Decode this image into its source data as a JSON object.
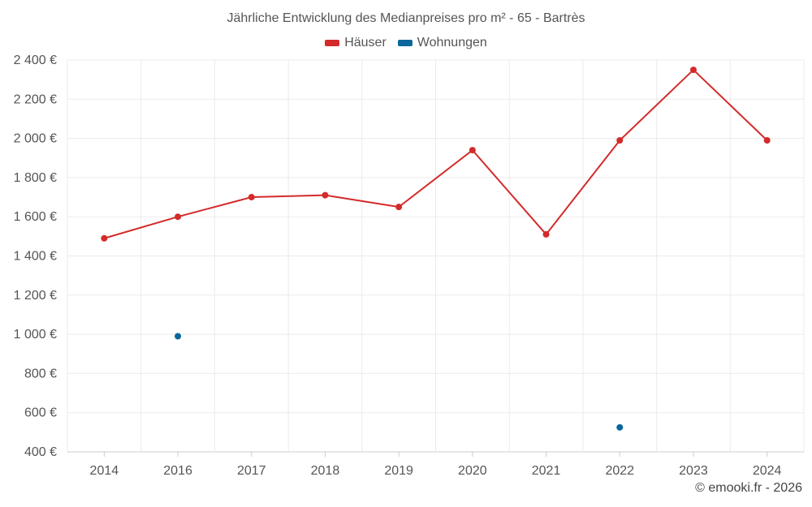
{
  "chart_data": {
    "type": "line",
    "title": "Jährliche Entwicklung des Medianpreises pro m² - 65 - Bartrès",
    "categories": [
      "2014",
      "2016",
      "2017",
      "2018",
      "2019",
      "2020",
      "2021",
      "2022",
      "2023",
      "2024"
    ],
    "series": [
      {
        "name": "Häuser",
        "color": "#d42a2a",
        "values": [
          1490,
          1600,
          1700,
          1710,
          1650,
          1940,
          1510,
          1990,
          2350,
          1990
        ]
      },
      {
        "name": "Wohnungen",
        "color": "#0b679b",
        "values": [
          null,
          990,
          null,
          null,
          null,
          null,
          null,
          525,
          null,
          null
        ]
      }
    ],
    "ylim": [
      400,
      2400
    ],
    "yticks": [
      400,
      600,
      800,
      1000,
      1200,
      1400,
      1600,
      1800,
      2000,
      2200,
      2400
    ],
    "ytick_labels": [
      "400 €",
      "600 €",
      "800 €",
      "1 000 €",
      "1 200 €",
      "1 400 €",
      "1 600 €",
      "1 800 €",
      "2 000 €",
      "2 200 €",
      "2 400 €"
    ],
    "grid": true,
    "legend_position": "top-center",
    "xlabel": "",
    "ylabel": ""
  },
  "credit": "© emooki.fr - 2026"
}
